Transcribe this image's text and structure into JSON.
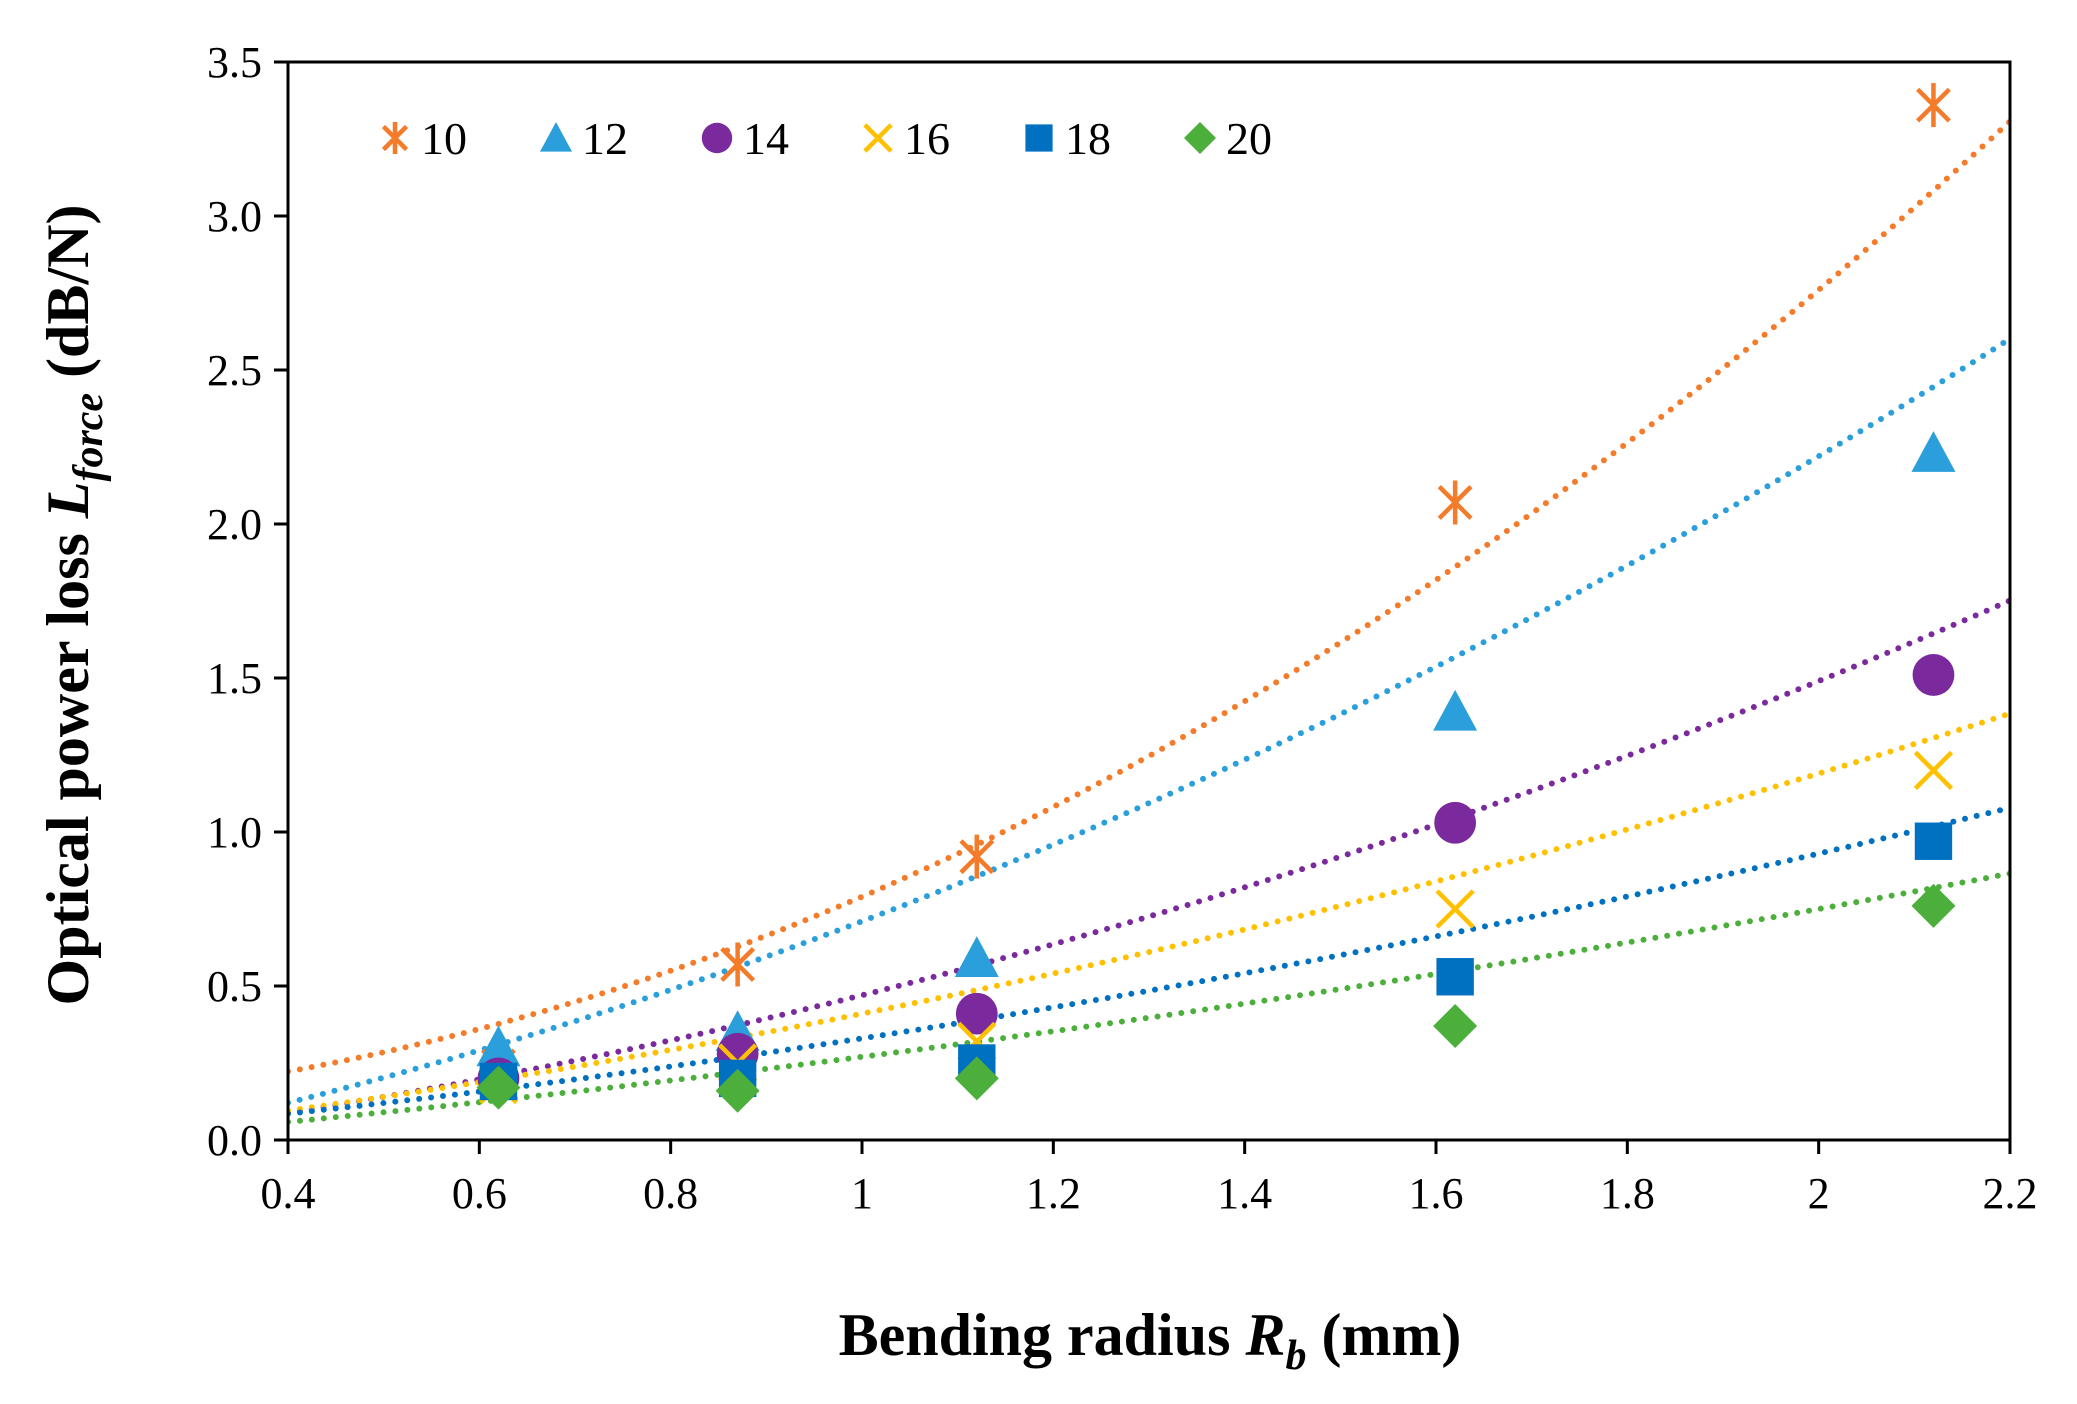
{
  "chart_data": {
    "type": "scatter",
    "title": "",
    "xlabel": {
      "main": "Bending radius ",
      "var": "R",
      "sub": "b",
      "unit": " (mm)"
    },
    "ylabel": {
      "main": "Optical power loss ",
      "var": "L",
      "sub": "force",
      "unit": " (dB/N)"
    },
    "xlim": [
      0.4,
      2.2
    ],
    "ylim": [
      0,
      3.5
    ],
    "xticks": [
      0.4,
      0.6,
      0.8,
      1,
      1.2,
      1.4,
      1.6,
      1.8,
      2,
      2.2
    ],
    "xtick_labels": [
      "0.4",
      "0.6",
      "0.8",
      "1",
      "1.2",
      "1.4",
      "1.6",
      "1.8",
      "2",
      "2.2"
    ],
    "yticks": [
      0,
      0.5,
      1,
      1.5,
      2,
      2.5,
      3,
      3.5
    ],
    "ytick_labels": [
      "0.0",
      "0.5",
      "1.0",
      "1.5",
      "2.0",
      "2.5",
      "3.0",
      "3.5"
    ],
    "grid": false,
    "legend_position": "top-left",
    "x": [
      0.62,
      0.87,
      1.12,
      1.62,
      2.12
    ],
    "series": [
      {
        "name": "10",
        "marker": "asterisk",
        "color": "#F47B29",
        "values": [
          0.24,
          0.57,
          0.92,
          2.07,
          3.36
        ],
        "trend_coeffs": [
          0.1,
          0.05,
          0.64
        ]
      },
      {
        "name": "12",
        "marker": "triangle",
        "color": "#2A9FDC",
        "values": [
          0.3,
          0.35,
          0.59,
          1.39,
          2.23
        ],
        "trend_coeffs": [
          -0.14,
          0.52,
          0.33
        ]
      },
      {
        "name": "14",
        "marker": "circle",
        "color": "#7B2A9E",
        "values": [
          0.2,
          0.28,
          0.41,
          1.03,
          1.51
        ],
        "trend_coeffs": [
          -0.07,
          0.3,
          0.24
        ]
      },
      {
        "name": "16",
        "marker": "x",
        "color": "#FFC000",
        "values": [
          0.18,
          0.25,
          0.32,
          0.75,
          1.2
        ],
        "trend_coeffs": [
          -0.05,
          0.3,
          0.16
        ]
      },
      {
        "name": "18",
        "marker": "square",
        "color": "#0070C0",
        "values": [
          0.19,
          0.2,
          0.25,
          0.53,
          0.97
        ],
        "trend_coeffs": [
          -0.03,
          0.24,
          0.12
        ]
      },
      {
        "name": "20",
        "marker": "diamond",
        "color": "#4CAF3C",
        "values": [
          0.17,
          0.16,
          0.2,
          0.37,
          0.76
        ],
        "trend_coeffs": [
          -0.05,
          0.24,
          0.08
        ]
      }
    ]
  }
}
